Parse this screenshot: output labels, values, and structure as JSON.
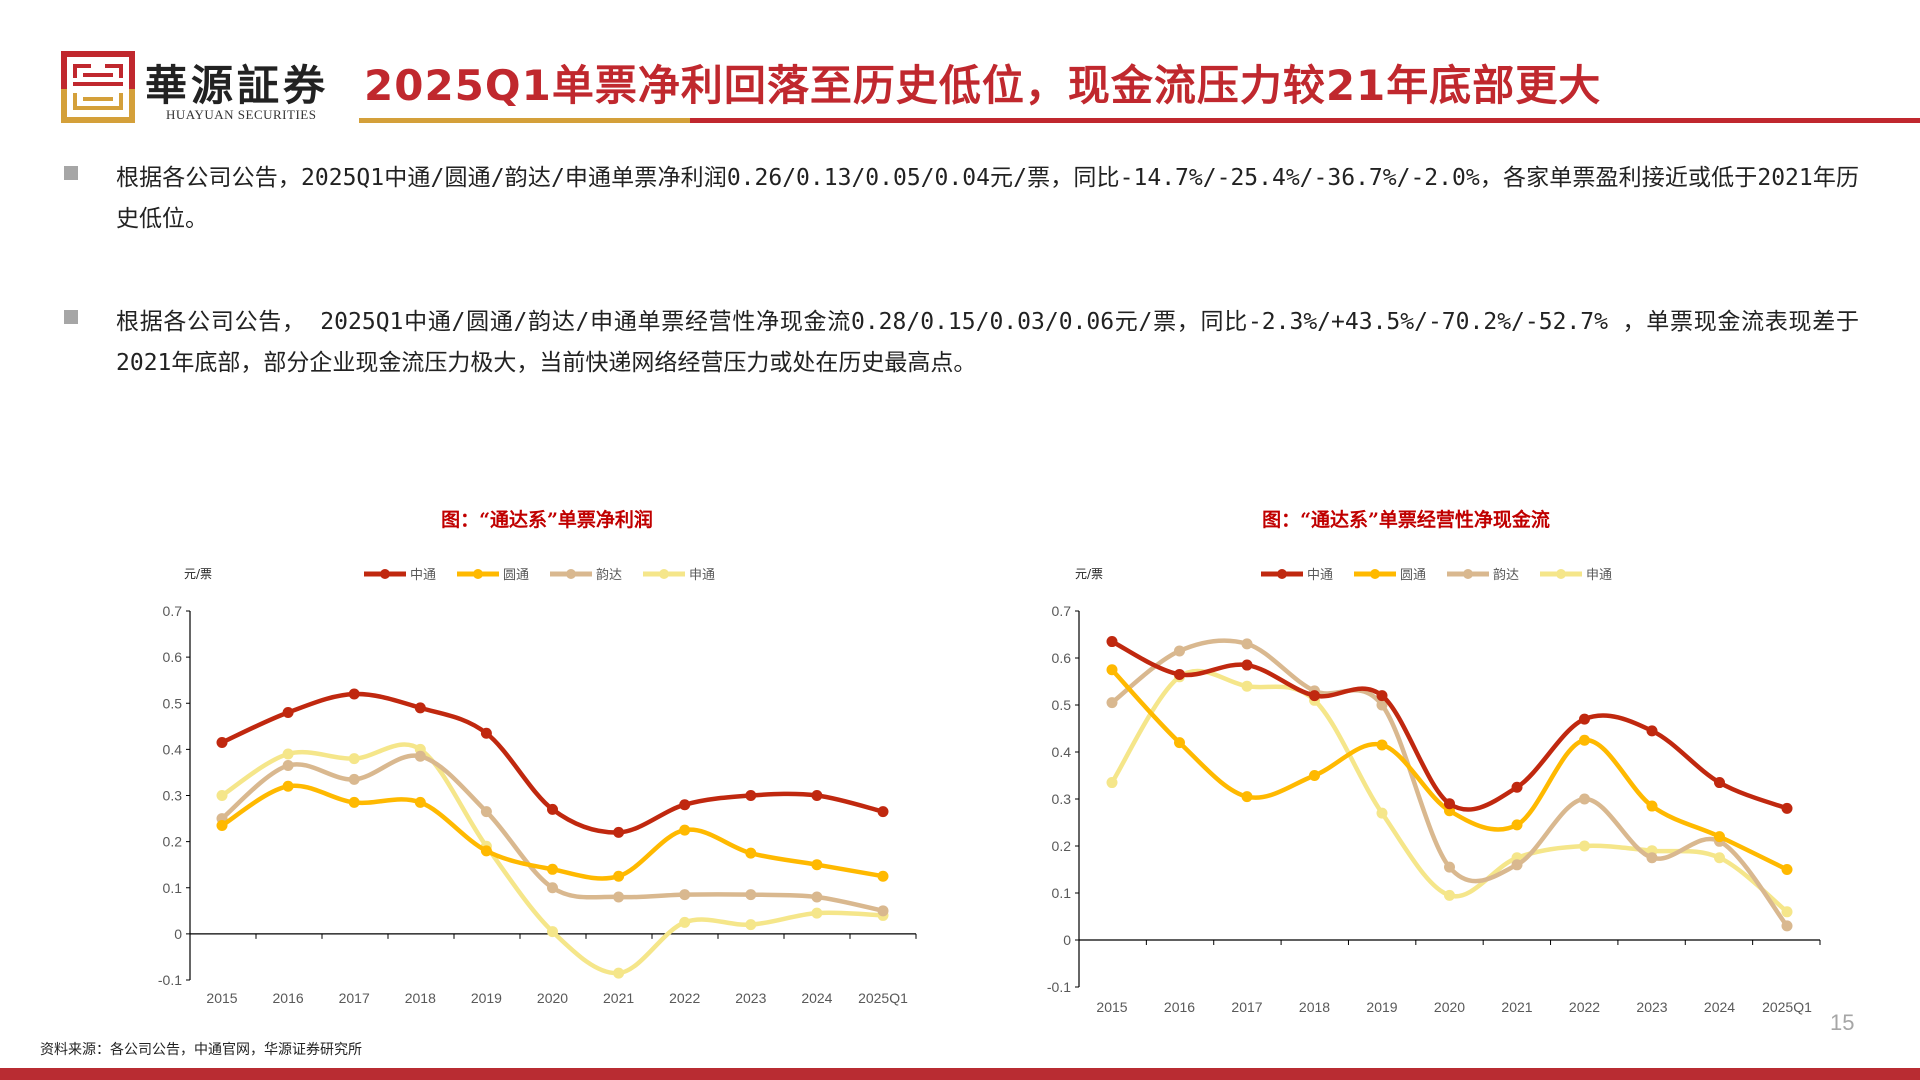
{
  "header": {
    "brand_cn": "華源証券",
    "brand_en": "HUAYUAN SECURITIES",
    "title": "2025Q1单票净利回落至历史低位，现金流压力较21年底部更大",
    "accent_red": "#C0282E",
    "accent_gold": "#D4A03A"
  },
  "bullets": [
    "根据各公司公告，2025Q1中通/圆通/韵达/申通单票净利润0.26/0.13/0.05/0.04元/票，同比-14.7%/-25.4%/-36.7%/-2.0%，各家单票盈利接近或低于2021年历史低位。",
    "根据各公司公告， 2025Q1中通/圆通/韵达/申通单票经营性净现金流0.28/0.15/0.03/0.06元/票，同比-2.3%/+43.5%/-70.2%/-52.7% ，单票现金流表现差于2021年底部，部分企业现金流压力极大，当前快递网络经营压力或处在历史最高点。"
  ],
  "chart_data": [
    {
      "type": "line",
      "title": "图：“通达系”单票净利润",
      "ylabel": "元/票",
      "xlabel": "",
      "ylim": [
        -0.1,
        0.7
      ],
      "yticks": [
        "-0.1",
        "0",
        "0.1",
        "0.2",
        "0.3",
        "0.4",
        "0.5",
        "0.6",
        "0.7"
      ],
      "smooth": true,
      "legend": "top",
      "categories": [
        "2015",
        "2016",
        "2017",
        "2018",
        "2019",
        "2020",
        "2021",
        "2022",
        "2023",
        "2024",
        "2025Q1"
      ],
      "series": [
        {
          "name": "中通",
          "color": "#C0280F",
          "values": [
            0.415,
            0.48,
            0.52,
            0.49,
            0.435,
            0.27,
            0.22,
            0.28,
            0.3,
            0.3,
            0.265
          ]
        },
        {
          "name": "圆通",
          "color": "#FFB900",
          "values": [
            0.235,
            0.32,
            0.285,
            0.285,
            0.18,
            0.14,
            0.125,
            0.225,
            0.175,
            0.15,
            0.125
          ]
        },
        {
          "name": "韵达",
          "color": "#D9B88F",
          "values": [
            0.25,
            0.365,
            0.335,
            0.385,
            0.265,
            0.1,
            0.08,
            0.085,
            0.085,
            0.08,
            0.05
          ]
        },
        {
          "name": "申通",
          "color": "#F5E68A",
          "values": [
            0.3,
            0.39,
            0.38,
            0.4,
            0.19,
            0.005,
            -0.085,
            0.025,
            0.02,
            0.045,
            0.04
          ]
        }
      ]
    },
    {
      "type": "line",
      "title": "图：“通达系”单票经营性净现金流",
      "ylabel": "元/票",
      "xlabel": "",
      "ylim": [
        -0.1,
        0.7
      ],
      "yticks": [
        "-0.1",
        "0",
        "0.1",
        "0.2",
        "0.3",
        "0.4",
        "0.5",
        "0.6",
        "0.7"
      ],
      "smooth": true,
      "legend": "top",
      "categories": [
        "2015",
        "2016",
        "2017",
        "2018",
        "2019",
        "2020",
        "2021",
        "2022",
        "2023",
        "2024",
        "2025Q1"
      ],
      "series": [
        {
          "name": "中通",
          "color": "#C0280F",
          "values": [
            0.635,
            0.565,
            0.585,
            0.52,
            0.52,
            0.29,
            0.325,
            0.47,
            0.445,
            0.335,
            0.28
          ]
        },
        {
          "name": "圆通",
          "color": "#FFB900",
          "values": [
            0.575,
            0.42,
            0.305,
            0.35,
            0.415,
            0.275,
            0.245,
            0.425,
            0.285,
            0.22,
            0.15
          ]
        },
        {
          "name": "韵达",
          "color": "#D9B88F",
          "values": [
            0.505,
            0.615,
            0.63,
            0.53,
            0.5,
            0.155,
            0.16,
            0.3,
            0.175,
            0.21,
            0.03
          ]
        },
        {
          "name": "申通",
          "color": "#F5E68A",
          "values": [
            0.335,
            0.56,
            0.54,
            0.51,
            0.27,
            0.095,
            0.175,
            0.2,
            0.19,
            0.175,
            0.06
          ]
        }
      ]
    }
  ],
  "footer": {
    "source": "资料来源：各公司公告，中通官网，华源证券研究所",
    "page_number": "15"
  }
}
